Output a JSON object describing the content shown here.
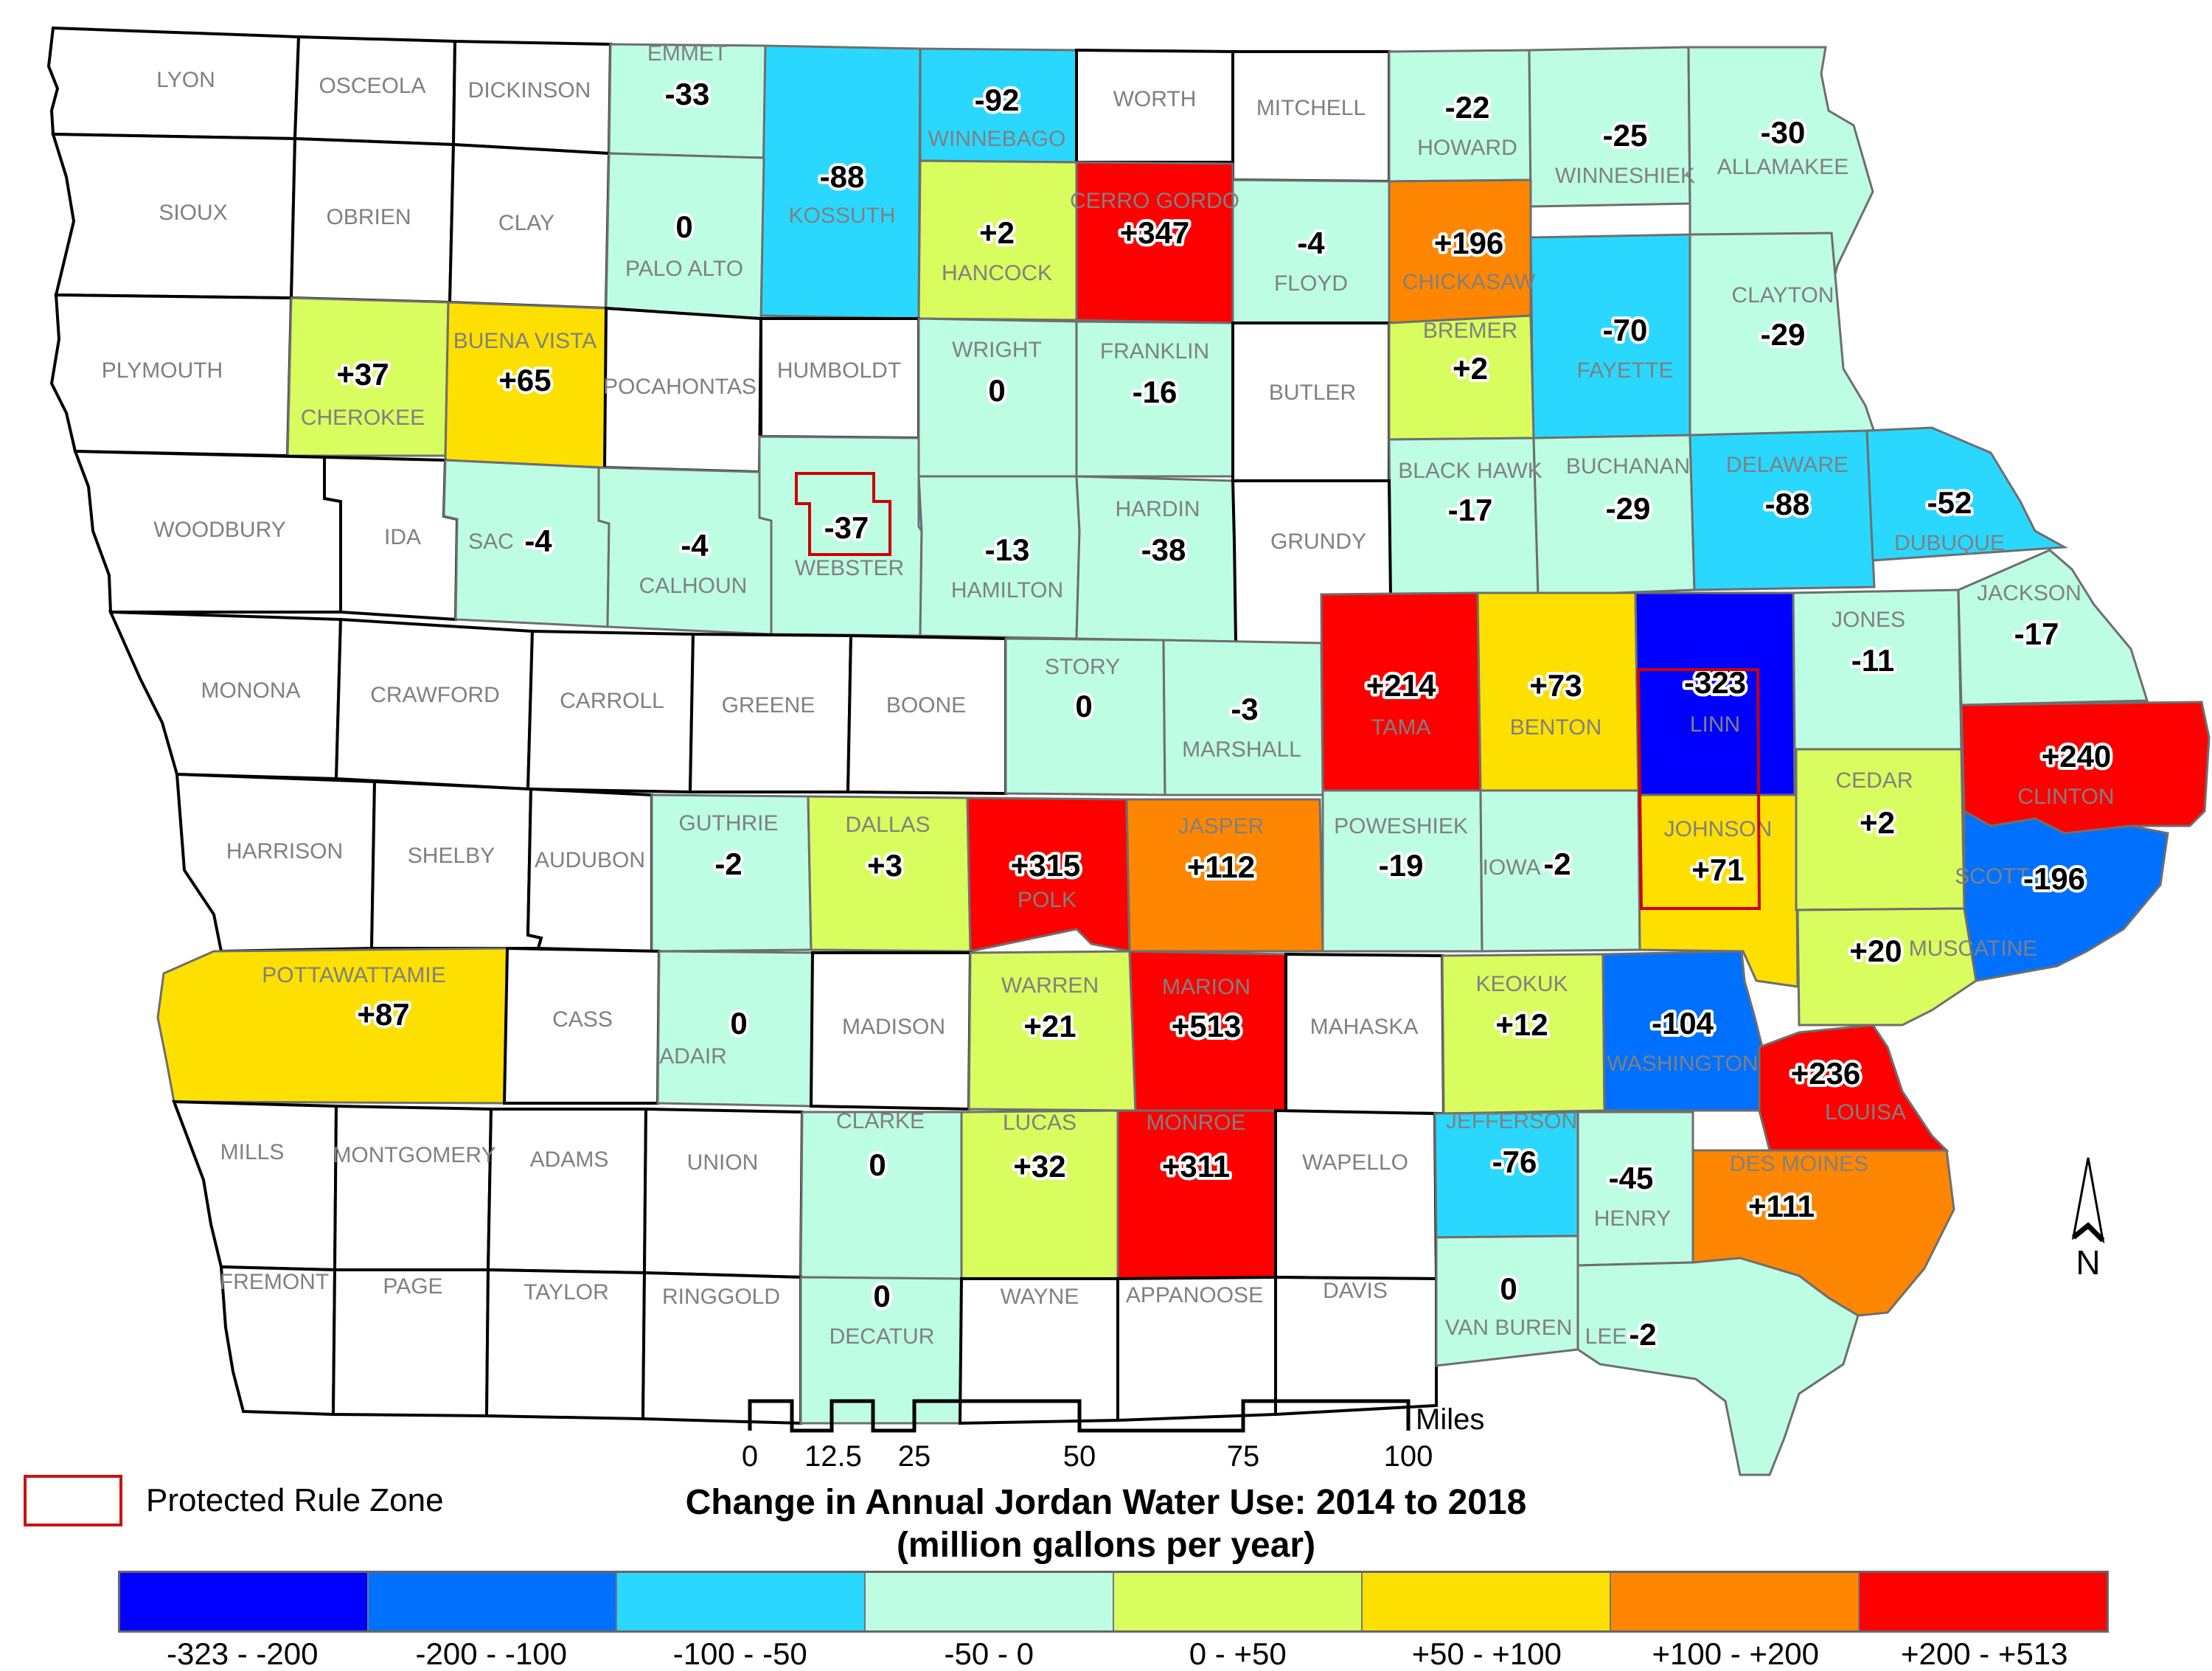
{
  "map": {
    "title_line1": "Change in Annual Jordan Water Use: 2014 to 2018",
    "title_line2": "(million gallons per year)",
    "protected_zone_label": "Protected Rule Zone",
    "north_label": "N",
    "scale_bar": {
      "unit": "Miles",
      "ticks": [
        "0",
        "12.5",
        "25",
        "50",
        "75",
        "100"
      ]
    }
  },
  "legend": {
    "classes": [
      {
        "label": "-323 - -200",
        "color": "#0000ff"
      },
      {
        "label": "-200 - -100",
        "color": "#0070ff"
      },
      {
        "label": "-100 - -50",
        "color": "#2ad8ff"
      },
      {
        "label": "-50 - 0",
        "color": "#bdfde4"
      },
      {
        "label": "0 - +50",
        "color": "#d9fc5e"
      },
      {
        "label": "+50 - +100",
        "color": "#fde000"
      },
      {
        "label": "+100 - +200",
        "color": "#ff8600"
      },
      {
        "label": "+200 - +513",
        "color": "#ff0000"
      }
    ],
    "nodata_color": "#ffffff"
  },
  "counties": [
    {
      "name": "LYON",
      "value": null
    },
    {
      "name": "OSCEOLA",
      "value": null
    },
    {
      "name": "DICKINSON",
      "value": null
    },
    {
      "name": "EMMET",
      "value": "-33"
    },
    {
      "name": "KOSSUTH",
      "value": "-88"
    },
    {
      "name": "WINNEBAGO",
      "value": "-92"
    },
    {
      "name": "WORTH",
      "value": null
    },
    {
      "name": "MITCHELL",
      "value": null
    },
    {
      "name": "HOWARD",
      "value": "-22"
    },
    {
      "name": "WINNESHIEK",
      "value": "-25"
    },
    {
      "name": "ALLAMAKEE",
      "value": "-30"
    },
    {
      "name": "SIOUX",
      "value": null
    },
    {
      "name": "OBRIEN",
      "value": null
    },
    {
      "name": "CLAY",
      "value": null
    },
    {
      "name": "PALO ALTO",
      "value": "0"
    },
    {
      "name": "HANCOCK",
      "value": "+2"
    },
    {
      "name": "CERRO GORDO",
      "value": "+347"
    },
    {
      "name": "FLOYD",
      "value": "-4"
    },
    {
      "name": "CHICKASAW",
      "value": "+196"
    },
    {
      "name": "FAYETTE",
      "value": "-70"
    },
    {
      "name": "CLAYTON",
      "value": "-29"
    },
    {
      "name": "PLYMOUTH",
      "value": null
    },
    {
      "name": "CHEROKEE",
      "value": "+37"
    },
    {
      "name": "BUENA VISTA",
      "value": "+65"
    },
    {
      "name": "POCAHONTAS",
      "value": null
    },
    {
      "name": "HUMBOLDT",
      "value": null
    },
    {
      "name": "WRIGHT",
      "value": "0"
    },
    {
      "name": "FRANKLIN",
      "value": "-16"
    },
    {
      "name": "BUTLER",
      "value": null
    },
    {
      "name": "BREMER",
      "value": "+2"
    },
    {
      "name": "BLACK HAWK",
      "value": "-17"
    },
    {
      "name": "BUCHANAN",
      "value": "-29"
    },
    {
      "name": "DELAWARE",
      "value": "-88"
    },
    {
      "name": "DUBUQUE",
      "value": "-52"
    },
    {
      "name": "WOODBURY",
      "value": null
    },
    {
      "name": "IDA",
      "value": null
    },
    {
      "name": "SAC",
      "value": "-4"
    },
    {
      "name": "CALHOUN",
      "value": "-4"
    },
    {
      "name": "WEBSTER",
      "value": "-37"
    },
    {
      "name": "HAMILTON",
      "value": "-13"
    },
    {
      "name": "HARDIN",
      "value": "-38"
    },
    {
      "name": "GRUNDY",
      "value": null
    },
    {
      "name": "TAMA",
      "value": "+214"
    },
    {
      "name": "BENTON",
      "value": "+73"
    },
    {
      "name": "LINN",
      "value": "-323"
    },
    {
      "name": "JONES",
      "value": "-11"
    },
    {
      "name": "JACKSON",
      "value": "-17"
    },
    {
      "name": "MONONA",
      "value": null
    },
    {
      "name": "CRAWFORD",
      "value": null
    },
    {
      "name": "CARROLL",
      "value": null
    },
    {
      "name": "GREENE",
      "value": null
    },
    {
      "name": "BOONE",
      "value": null
    },
    {
      "name": "STORY",
      "value": "0"
    },
    {
      "name": "MARSHALL",
      "value": "-3"
    },
    {
      "name": "CLINTON",
      "value": "+240"
    },
    {
      "name": "HARRISON",
      "value": null
    },
    {
      "name": "SHELBY",
      "value": null
    },
    {
      "name": "AUDUBON",
      "value": null
    },
    {
      "name": "GUTHRIE",
      "value": "-2"
    },
    {
      "name": "DALLAS",
      "value": "+3"
    },
    {
      "name": "POLK",
      "value": "+315"
    },
    {
      "name": "JASPER",
      "value": "+112"
    },
    {
      "name": "POWESHIEK",
      "value": "-19"
    },
    {
      "name": "IOWA",
      "value": "-2"
    },
    {
      "name": "JOHNSON",
      "value": "+71"
    },
    {
      "name": "CEDAR",
      "value": "+2"
    },
    {
      "name": "SCOTT",
      "value": "-196"
    },
    {
      "name": "MUSCATINE",
      "value": "+20"
    },
    {
      "name": "POTTAWATTAMIE",
      "value": "+87"
    },
    {
      "name": "CASS",
      "value": null
    },
    {
      "name": "ADAIR",
      "value": "0"
    },
    {
      "name": "MADISON",
      "value": null
    },
    {
      "name": "WARREN",
      "value": "+21"
    },
    {
      "name": "MARION",
      "value": "+513"
    },
    {
      "name": "MAHASKA",
      "value": null
    },
    {
      "name": "KEOKUK",
      "value": "+12"
    },
    {
      "name": "WASHINGTON",
      "value": "-104"
    },
    {
      "name": "LOUISA",
      "value": "+236"
    },
    {
      "name": "MILLS",
      "value": null
    },
    {
      "name": "MONTGOMERY",
      "value": null
    },
    {
      "name": "ADAMS",
      "value": null
    },
    {
      "name": "UNION",
      "value": null
    },
    {
      "name": "CLARKE",
      "value": "0"
    },
    {
      "name": "LUCAS",
      "value": "+32"
    },
    {
      "name": "MONROE",
      "value": "+311"
    },
    {
      "name": "WAPELLO",
      "value": null
    },
    {
      "name": "JEFFERSON",
      "value": "-76"
    },
    {
      "name": "HENRY",
      "value": "-45"
    },
    {
      "name": "DES MOINES",
      "value": "+111"
    },
    {
      "name": "FREMONT",
      "value": null
    },
    {
      "name": "PAGE",
      "value": null
    },
    {
      "name": "TAYLOR",
      "value": null
    },
    {
      "name": "RINGGOLD",
      "value": null
    },
    {
      "name": "DECATUR",
      "value": "0"
    },
    {
      "name": "WAYNE",
      "value": null
    },
    {
      "name": "APPANOOSE",
      "value": null
    },
    {
      "name": "DAVIS",
      "value": null
    },
    {
      "name": "VAN BUREN",
      "value": "0"
    },
    {
      "name": "LEE",
      "value": "-2"
    }
  ]
}
